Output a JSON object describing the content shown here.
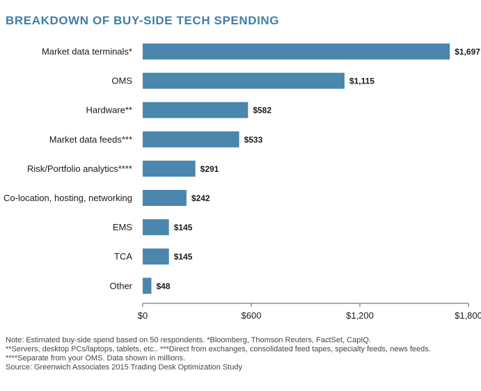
{
  "chart_data": {
    "type": "bar",
    "orientation": "horizontal",
    "title": "BREAKDOWN OF BUY-SIDE TECH SPENDING",
    "categories": [
      "Market data terminals*",
      "OMS",
      "Hardware**",
      "Market data feeds***",
      "Risk/Portfolio analytics****",
      "Co-location, hosting, networking",
      "EMS",
      "TCA",
      "Other"
    ],
    "values": [
      1697,
      1115,
      582,
      533,
      291,
      242,
      145,
      145,
      48
    ],
    "value_labels": [
      "$1,697",
      "$1,115",
      "$582",
      "$533",
      "$291",
      "$242",
      "$145",
      "$145",
      "$48"
    ],
    "xlim": [
      0,
      1800
    ],
    "x_ticks": [
      0,
      600,
      1200,
      1800
    ],
    "x_tick_labels": [
      "$0",
      "$600",
      "$1,200",
      "$1,800"
    ],
    "xlabel": "",
    "ylabel": "",
    "grid": false,
    "bar_color": "#4a86ad",
    "title_color": "#3f7ea6"
  },
  "notes": [
    "Note: Estimated buy-side spend based on 50 respondents. *Bloomberg, Thomson Reuters, FactSet, CapIQ.",
    "**Servers, desktop PCs/laptops, tablets, etc.. ***Direct from exchanges, consolidated feed tapes, specialty feeds, news feeds.",
    "****Separate from your OMS. Data shown in millions.",
    "Source: Greenwich Associates 2015 Trading Desk Optimization Study"
  ]
}
